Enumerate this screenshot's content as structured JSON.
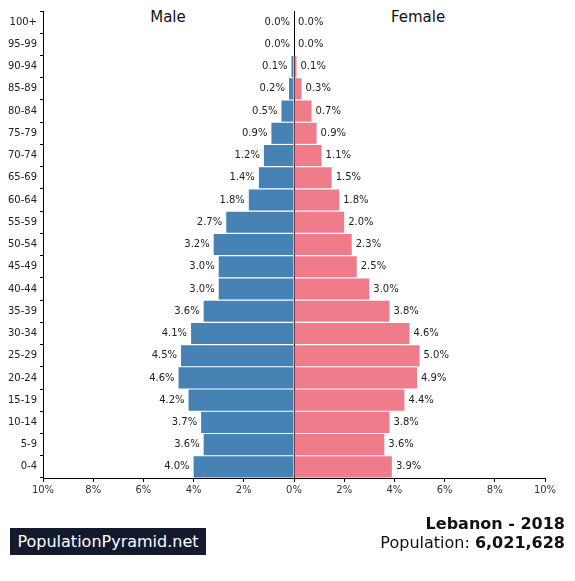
{
  "chart_data": {
    "type": "bar",
    "orientation": "horizontal",
    "categories": [
      "0-4",
      "5-9",
      "10-14",
      "15-19",
      "20-24",
      "25-29",
      "30-34",
      "35-39",
      "40-44",
      "45-49",
      "50-54",
      "55-59",
      "60-64",
      "65-69",
      "70-74",
      "75-79",
      "80-84",
      "85-89",
      "90-94",
      "95-99",
      "100+"
    ],
    "series": [
      {
        "name": "Male",
        "color": "#4682b4",
        "values": [
          4.0,
          3.6,
          3.7,
          4.2,
          4.6,
          4.5,
          4.1,
          3.6,
          3.0,
          3.0,
          3.2,
          2.7,
          1.8,
          1.4,
          1.2,
          0.9,
          0.5,
          0.2,
          0.1,
          0.0,
          0.0
        ],
        "value_labels": [
          "4.0%",
          "3.6%",
          "3.7%",
          "4.2%",
          "4.6%",
          "4.5%",
          "4.1%",
          "3.6%",
          "3.0%",
          "3.0%",
          "3.2%",
          "2.7%",
          "1.8%",
          "1.4%",
          "1.2%",
          "0.9%",
          "0.5%",
          "0.2%",
          "0.1%",
          "0.0%",
          "0.0%"
        ]
      },
      {
        "name": "Female",
        "color": "#f07b8a",
        "values": [
          3.9,
          3.6,
          3.8,
          4.4,
          4.9,
          5.0,
          4.6,
          3.8,
          3.0,
          2.5,
          2.3,
          2.0,
          1.8,
          1.5,
          1.1,
          0.9,
          0.7,
          0.3,
          0.1,
          0.0,
          0.0
        ],
        "value_labels": [
          "3.9%",
          "3.6%",
          "3.8%",
          "4.4%",
          "4.9%",
          "5.0%",
          "4.6%",
          "3.8%",
          "3.0%",
          "2.5%",
          "2.3%",
          "2.0%",
          "1.8%",
          "1.5%",
          "1.1%",
          "0.9%",
          "0.7%",
          "0.3%",
          "0.1%",
          "0.0%",
          "0.0%"
        ]
      }
    ],
    "xlim": [
      0,
      10
    ],
    "xticks": [
      {
        "value": 0,
        "label": "0%"
      },
      {
        "value": 2,
        "label": "2%"
      },
      {
        "value": 4,
        "label": "4%"
      },
      {
        "value": 6,
        "label": "6%"
      },
      {
        "value": 8,
        "label": "8%"
      },
      {
        "value": 10,
        "label": "10%"
      }
    ],
    "grid": false,
    "data_labels": true
  },
  "footer": {
    "brand": "PopulationPyramid.net",
    "country_year": "Lebanon - 2018",
    "population_label": "Population:",
    "population": "6,021,628"
  }
}
